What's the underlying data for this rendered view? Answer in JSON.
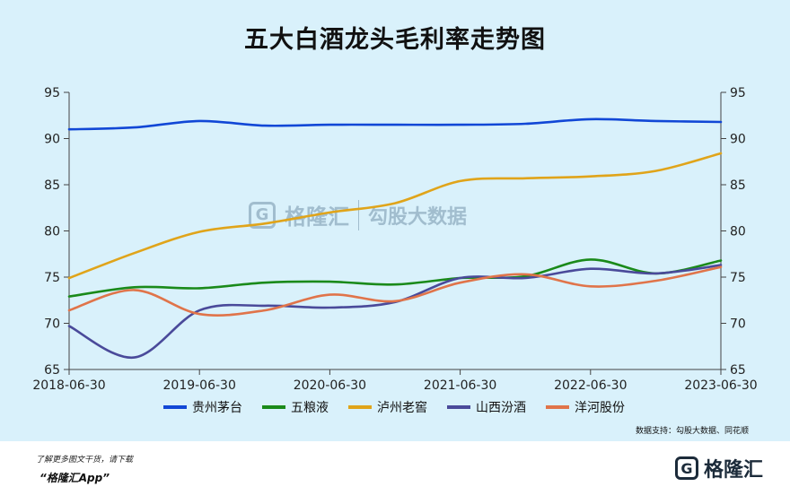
{
  "title": "五大白酒龙头毛利率走势图",
  "source": "数据支持：勾股大数据、同花顺",
  "watermark": {
    "mark": "G",
    "name": "格隆汇",
    "name2": "勾股大数据"
  },
  "footer": {
    "line1": "了解更多图文干货，请下载",
    "line2": "“格隆汇App”",
    "logo_mark": "G",
    "logo_text": "格隆汇"
  },
  "chart_data": {
    "type": "line",
    "title": "五大白酒龙头毛利率走势图",
    "x": [
      "2018-06-30",
      "2018-12-31",
      "2019-06-30",
      "2019-12-31",
      "2020-06-30",
      "2020-12-31",
      "2021-06-30",
      "2021-12-31",
      "2022-06-30",
      "2022-12-31",
      "2023-06-30"
    ],
    "x_tick_labels": [
      "2018-06-30",
      "2019-06-30",
      "2020-06-30",
      "2021-06-30",
      "2022-06-30",
      "2023-06-30"
    ],
    "ylim": [
      65,
      95
    ],
    "y_ticks": [
      65,
      70,
      75,
      80,
      85,
      90,
      95
    ],
    "dual_y_axis": true,
    "grid": false,
    "legend_position": "bottom",
    "series": [
      {
        "name": "贵州茅台",
        "color": "#1147d6",
        "values": [
          91.0,
          91.2,
          91.9,
          91.4,
          91.5,
          91.5,
          91.5,
          91.6,
          92.1,
          91.9,
          91.8
        ]
      },
      {
        "name": "五粮液",
        "color": "#1a8a1a",
        "values": [
          72.9,
          73.9,
          73.8,
          74.4,
          74.5,
          74.2,
          74.9,
          75.1,
          76.9,
          75.4,
          76.8
        ]
      },
      {
        "name": "泸州老窖",
        "color": "#e0a41a",
        "values": [
          74.9,
          77.6,
          79.9,
          80.8,
          82.0,
          83.0,
          85.4,
          85.7,
          85.9,
          86.5,
          88.4
        ]
      },
      {
        "name": "山西汾酒",
        "color": "#4a4a9a",
        "values": [
          69.7,
          66.3,
          71.4,
          71.9,
          71.7,
          72.3,
          74.9,
          74.9,
          75.9,
          75.4,
          76.3
        ]
      },
      {
        "name": "洋河股份",
        "color": "#e0744a",
        "values": [
          71.4,
          73.6,
          71.0,
          71.4,
          73.1,
          72.4,
          74.4,
          75.3,
          74.0,
          74.6,
          76.1
        ]
      }
    ]
  }
}
